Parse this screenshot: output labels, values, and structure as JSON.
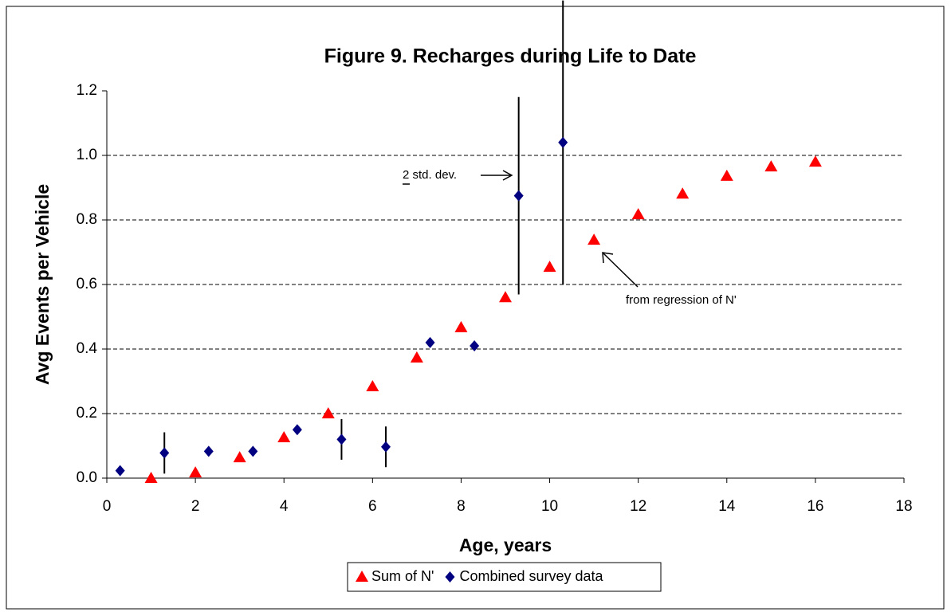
{
  "chart_data": {
    "type": "scatter",
    "title": "Figure 9.  Recharges during Life to Date",
    "xlabel": "Age, years",
    "ylabel": "Avg Events per Vehicle",
    "xlim": [
      0,
      18
    ],
    "xticks": [
      0,
      2,
      4,
      6,
      8,
      10,
      12,
      14,
      16,
      18
    ],
    "ylim": [
      0,
      1.2
    ],
    "yticks": [
      {
        "value": 0,
        "label": "0.0"
      },
      {
        "value": 0.2,
        "label": "0.2"
      },
      {
        "value": 0.4,
        "label": "0.4"
      },
      {
        "value": 0.6,
        "label": "0.6"
      },
      {
        "value": 0.8,
        "label": "0.8"
      },
      {
        "value": 1.0,
        "label": "1.0"
      },
      {
        "value": 1.2,
        "label": "1.2"
      }
    ],
    "grid": true,
    "legend": "bottom",
    "series": [
      {
        "name": "Sum of N'",
        "color": "#ff0000",
        "marker": "triangle",
        "x": [
          1,
          2,
          3,
          4,
          5,
          6,
          7,
          8,
          9,
          10,
          11,
          12,
          13,
          14,
          15,
          16
        ],
        "values": [
          0.0,
          0.017,
          0.064,
          0.126,
          0.2,
          0.284,
          0.373,
          0.467,
          0.56,
          0.654,
          0.738,
          0.817,
          0.881,
          0.936,
          0.965,
          0.98
        ]
      },
      {
        "name": "Combined survey data",
        "color": "#000080",
        "marker": "diamond",
        "x": [
          0.3,
          1.3,
          2.3,
          3.3,
          4.3,
          5.3,
          6.3,
          7.3,
          8.3,
          9.3,
          10.3
        ],
        "values": [
          0.023,
          0.078,
          0.083,
          0.083,
          0.15,
          0.12,
          0.097,
          0.42,
          0.41,
          0.875,
          1.04
        ],
        "errors": [
          null,
          0.064,
          null,
          null,
          null,
          0.063,
          0.063,
          null,
          null,
          0.306,
          0.44
        ]
      }
    ],
    "annotations": [
      "2 std. dev.",
      "from regression of N'"
    ]
  }
}
